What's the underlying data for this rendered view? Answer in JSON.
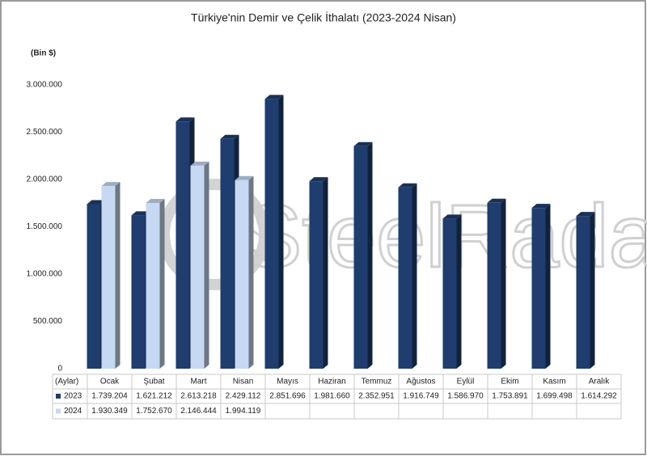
{
  "chart_data": {
    "type": "bar3d",
    "title": "Türkiye'nin Demir ve Çelik İthalatı (2023-2024 Nisan)",
    "y_label": "(Bin $)",
    "x_label": "(Aylar)",
    "watermark": "SteelRadar",
    "categories": [
      "Ocak",
      "Şubat",
      "Mart",
      "Nisan",
      "Mayıs",
      "Haziran",
      "Temmuz",
      "Ağustos",
      "Eylül",
      "Ekim",
      "Kasım",
      "Aralık"
    ],
    "series": [
      {
        "name": "2023",
        "color": "#1f3d6e",
        "values": [
          1739204,
          1621212,
          2613218,
          2429112,
          2851696,
          1981660,
          2352951,
          1916749,
          1586970,
          1753891,
          1699498,
          1614292
        ],
        "value_labels": [
          "1.739.204",
          "1.621.212",
          "2.613.218",
          "2.429.112",
          "2.851.696",
          "1.981.660",
          "2.352.951",
          "1.916.749",
          "1.586.970",
          "1.753.891",
          "1.699.498",
          "1.614.292"
        ]
      },
      {
        "name": "2024",
        "color": "#c6d8f2",
        "values": [
          1930349,
          1752670,
          2146444,
          1994119,
          null,
          null,
          null,
          null,
          null,
          null,
          null,
          null
        ],
        "value_labels": [
          "1.930.349",
          "1.752.670",
          "2.146.444",
          "1.994.119",
          null,
          null,
          null,
          null,
          null,
          null,
          null,
          null
        ]
      }
    ],
    "ylim": [
      0,
      3000000
    ],
    "yticks": [
      0,
      {
        "value": 500000,
        "label": "500.000"
      },
      {
        "value": 1000000,
        "label": "1.000.000"
      },
      {
        "value": 1500000,
        "label": "1.500.000"
      },
      {
        "value": 2000000,
        "label": "2.000.000"
      },
      {
        "value": 2500000,
        "label": "2.500.000"
      },
      {
        "value": 3000000,
        "label": "3.000.000"
      }
    ],
    "grid": false
  }
}
